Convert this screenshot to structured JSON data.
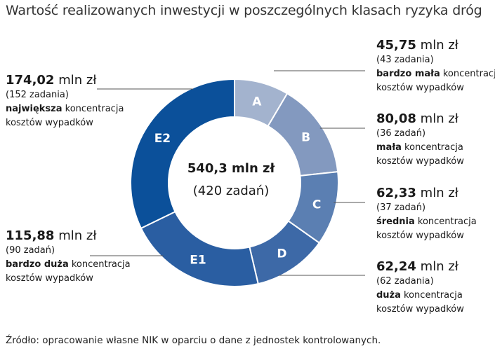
{
  "title": "Wartość realizowanych  inwestycji w poszczególnych  klasach ryzyka dróg",
  "source": "Źródło: opracowanie własne NIK w oparciu o dane z jednostek kontrolowanych.",
  "center": {
    "total": "540,3 mln zł",
    "count": "(420 zadań)"
  },
  "chart_data": {
    "type": "pie",
    "variant": "donut",
    "unit": "mln zł",
    "segments": [
      {
        "key": "a",
        "label": "A",
        "value": 45.75,
        "value_text": "45,75",
        "tasks": "(43 zadania)",
        "conc_bold": "bardzo mała",
        "conc_rest": " koncentracja",
        "conc_line2": "kosztów wypadków",
        "color": "#a3b3ce"
      },
      {
        "key": "b",
        "label": "B",
        "value": 80.08,
        "value_text": "80,08",
        "tasks": "(36 zadań)",
        "conc_bold": "mała",
        "conc_rest": " koncentracja",
        "conc_line2": "kosztów wypadków",
        "color": "#8399bf"
      },
      {
        "key": "c",
        "label": "C",
        "value": 62.33,
        "value_text": "62,33",
        "tasks": "(37 zadań)",
        "conc_bold": "średnia",
        "conc_rest": " koncentracja",
        "conc_line2": "kosztów wypadków",
        "color": "#5b7fb2"
      },
      {
        "key": "d",
        "label": "D",
        "value": 62.24,
        "value_text": "62,24",
        "tasks": "(62 zadania)",
        "conc_bold": "duża",
        "conc_rest": " koncentracja",
        "conc_line2": "kosztów wypadków",
        "color": "#3d69a7"
      },
      {
        "key": "e1",
        "label": "E1",
        "value": 115.88,
        "value_text": "115,88",
        "tasks": "(90 zadań)",
        "conc_bold": "bardzo duża",
        "conc_rest": " koncentracja",
        "conc_line2": "kosztów wypadków",
        "color": "#2a5ea2"
      },
      {
        "key": "e2",
        "label": "E2",
        "value": 174.02,
        "value_text": "174,02",
        "tasks": "(152 zadania)",
        "conc_bold": "największa",
        "conc_rest": " koncentracja",
        "conc_line2": "kosztów wypadków",
        "color": "#0b509a"
      }
    ]
  },
  "colors": {
    "leader_line": "#555555",
    "segment_border": "#ffffff",
    "segment_label": "#ffffff"
  }
}
